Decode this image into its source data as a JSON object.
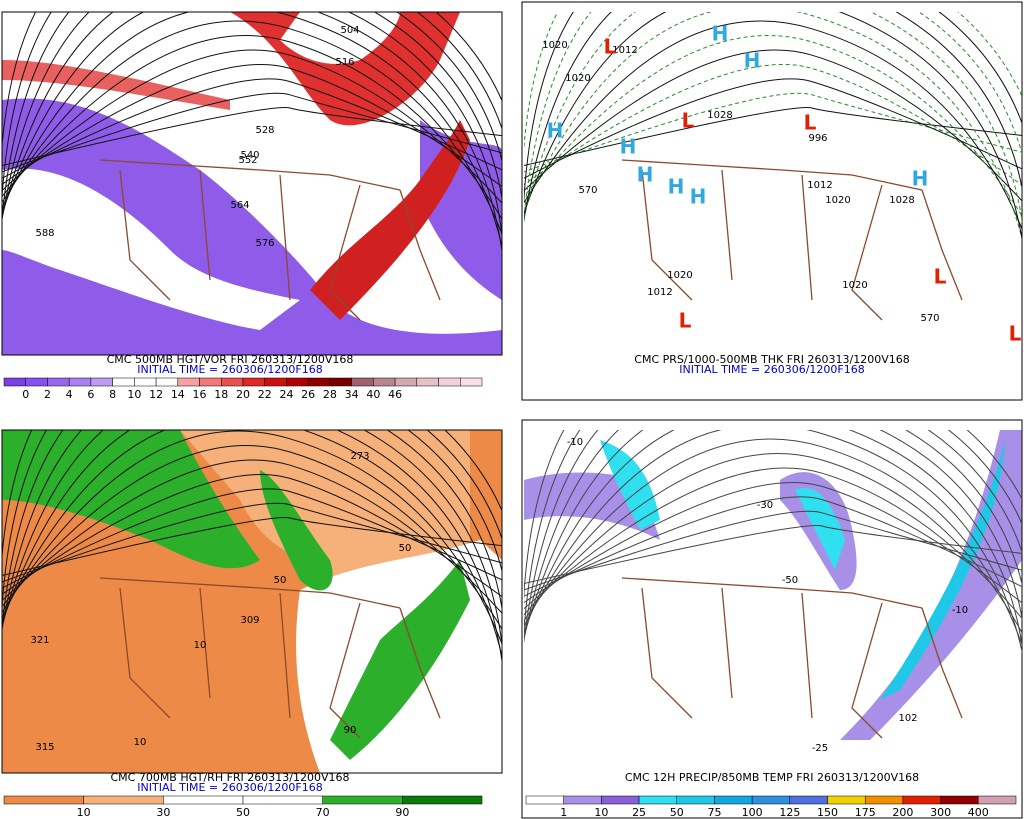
{
  "panels": [
    {
      "caption": "CMC 500MB HGT/VOR FRI 260313/1200V168",
      "initial_time": "INITIAL TIME = 260306/1200F168",
      "colorbar": {
        "labels": [
          "0",
          "2",
          "4",
          "6",
          "8",
          "10",
          "12",
          "14",
          "16",
          "18",
          "20",
          "22",
          "24",
          "26",
          "28",
          "34",
          "40",
          "46"
        ],
        "colors": [
          "#7b3fe4",
          "#8a4ff0",
          "#9a66f0",
          "#ab80f2",
          "#bd9cf4",
          "#ffffff",
          "#ffffff",
          "#ffffff",
          "#f6a0a0",
          "#f07878",
          "#ea5050",
          "#e02828",
          "#cc1010",
          "#b00000",
          "#900000",
          "#7a0000",
          "#a06070",
          "#b88890",
          "#d0a8b0",
          "#e8c0c8",
          "#f4d0d8",
          "#f8e0e6"
        ]
      },
      "contour_labels": [
        "504",
        "516",
        "528",
        "540",
        "552",
        "564",
        "576",
        "588"
      ]
    },
    {
      "caption": "CMC PRS/1000-500MB THK FRI 260313/1200V168",
      "initial_time": "INITIAL TIME = 260306/1200F168",
      "contour_labels": [
        "1020",
        "1012",
        "1020",
        "1028",
        "996",
        "1012",
        "1020",
        "1028",
        "1020",
        "1012",
        "1020",
        "570",
        "570"
      ],
      "centers": [
        "H",
        "H",
        "H",
        "H",
        "H",
        "H",
        "H",
        "H",
        "L",
        "L",
        "L",
        "L",
        "L",
        "L"
      ]
    },
    {
      "caption": "CMC 700MB HGT/RH FRI 260313/1200V168",
      "initial_time": "INITIAL TIME = 260306/1200F168",
      "colorbar": {
        "labels": [
          "10",
          "30",
          "50",
          "70",
          "90"
        ],
        "colors": [
          "#ee8a48",
          "#f6b07a",
          "#ffffff",
          "#ffffff",
          "#2cb02c",
          "#0a7a0a"
        ]
      },
      "contour_labels": [
        "321",
        "315",
        "309",
        "273",
        "10",
        "50",
        "90",
        "50",
        "10"
      ]
    },
    {
      "caption": "CMC 12H PRECIP/850MB TEMP FRI 260313/1200V168",
      "colorbar": {
        "labels": [
          "1",
          "10",
          "25",
          "50",
          "75",
          "100",
          "125",
          "150",
          "175",
          "200",
          "300",
          "400"
        ],
        "colors": [
          "#ffffff",
          "#a890e8",
          "#8860d8",
          "#30e0f0",
          "#20c8e8",
          "#10a8e0",
          "#3090e0",
          "#5070e0",
          "#f0d000",
          "#f09000",
          "#e02000",
          "#900000",
          "#d0a0b0"
        ]
      },
      "contour_labels": [
        "-10",
        "-30",
        "-50",
        "102",
        "-25",
        "-10"
      ]
    }
  ]
}
